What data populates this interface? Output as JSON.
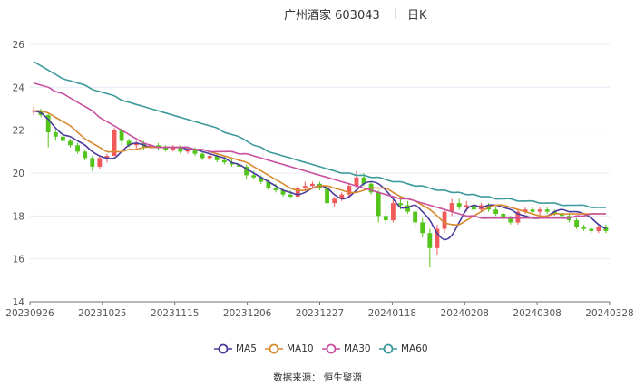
{
  "header": {
    "title": "广州酒家 603043",
    "period": "日K"
  },
  "source_label": "数据来源：  恒生聚源",
  "colors": {
    "up": "#f05a5a",
    "down": "#52c41a",
    "ma5": "#4b3c9c",
    "ma10": "#d8892f",
    "ma30": "#c94f9f",
    "ma60": "#3c9a9a",
    "grid": "#e8ecf4"
  },
  "chart_data": {
    "type": "candlestick",
    "title": "广州酒家 603043",
    "period": "日K",
    "ylim": [
      14,
      26
    ],
    "y_ticks": [
      14,
      16,
      18,
      20,
      22,
      24,
      26
    ],
    "x_tick_labels": [
      "20230926",
      "20231025",
      "20231115",
      "20231206",
      "20231227",
      "20240118",
      "20240208",
      "20240308",
      "20240328"
    ],
    "grid": true,
    "legend_position": "bottom",
    "legend": [
      "MA5",
      "MA10",
      "MA30",
      "MA60"
    ],
    "x_range": [
      "20230926",
      "20240328"
    ],
    "ma_series": [
      {
        "name": "MA5",
        "values": [
          22.9,
          22.8,
          22.5,
          22.1,
          21.8,
          21.7,
          21.5,
          21.3,
          21.0,
          20.8,
          20.7,
          20.7,
          21.0,
          21.3,
          21.4,
          21.3,
          21.2,
          21.2,
          21.2,
          21.2,
          21.2,
          21.1,
          21.1,
          21.0,
          20.9,
          20.8,
          20.7,
          20.5,
          20.4,
          20.2,
          20.0,
          19.8,
          19.6,
          19.4,
          19.2,
          19.1,
          19.0,
          19.1,
          19.3,
          19.4,
          19.3,
          19.0,
          18.8,
          18.9,
          19.2,
          19.5,
          19.6,
          19.5,
          19.2,
          18.8,
          18.4,
          18.4,
          18.5,
          18.2,
          17.8,
          17.2,
          16.9,
          17.1,
          17.7,
          18.3,
          18.5,
          18.4,
          18.5,
          18.5,
          18.4,
          18.3,
          18.1,
          18.0,
          17.9,
          17.9,
          18.0,
          18.2,
          18.3,
          18.2,
          18.2,
          18.1,
          17.9,
          17.6,
          17.4
        ]
      },
      {
        "name": "MA10",
        "values": [
          22.9,
          22.9,
          22.8,
          22.6,
          22.4,
          22.2,
          21.9,
          21.6,
          21.4,
          21.2,
          21.0,
          21.0,
          21.0,
          21.1,
          21.1,
          21.2,
          21.2,
          21.2,
          21.2,
          21.2,
          21.2,
          21.2,
          21.1,
          21.1,
          21.0,
          20.9,
          20.8,
          20.7,
          20.6,
          20.5,
          20.3,
          20.1,
          19.9,
          19.7,
          19.5,
          19.3,
          19.2,
          19.2,
          19.3,
          19.4,
          19.4,
          19.3,
          19.2,
          19.1,
          19.1,
          19.2,
          19.3,
          19.3,
          19.3,
          19.1,
          18.9,
          18.8,
          18.7,
          18.5,
          18.3,
          18.0,
          17.7,
          17.6,
          17.6,
          17.8,
          18.0,
          18.2,
          18.4,
          18.5,
          18.5,
          18.4,
          18.3,
          18.2,
          18.1,
          18.0,
          18.0,
          18.1,
          18.1,
          18.1,
          18.1,
          18.1,
          18.1,
          18.1,
          18.1
        ]
      },
      {
        "name": "MA30",
        "values": [
          24.2,
          24.1,
          24.0,
          23.8,
          23.7,
          23.5,
          23.3,
          23.1,
          22.9,
          22.6,
          22.4,
          22.2,
          22.0,
          21.8,
          21.6,
          21.4,
          21.3,
          21.2,
          21.2,
          21.2,
          21.2,
          21.2,
          21.1,
          21.1,
          21.0,
          21.0,
          21.0,
          21.0,
          20.9,
          20.9,
          20.8,
          20.7,
          20.6,
          20.5,
          20.4,
          20.3,
          20.2,
          20.1,
          20.0,
          19.9,
          19.8,
          19.7,
          19.6,
          19.5,
          19.4,
          19.3,
          19.2,
          19.1,
          19.0,
          18.9,
          18.8,
          18.8,
          18.7,
          18.6,
          18.5,
          18.4,
          18.3,
          18.2,
          18.1,
          18.0,
          18.0,
          17.9,
          17.9,
          17.9,
          17.9,
          17.9,
          17.9,
          17.9,
          17.9,
          17.9,
          17.9,
          17.9,
          17.9,
          17.9,
          18.0,
          18.0,
          18.1,
          18.1,
          18.1
        ]
      },
      {
        "name": "MA60",
        "values": [
          25.2,
          25.0,
          24.8,
          24.6,
          24.4,
          24.3,
          24.2,
          24.1,
          23.9,
          23.8,
          23.7,
          23.6,
          23.4,
          23.3,
          23.2,
          23.1,
          23.0,
          22.9,
          22.8,
          22.7,
          22.6,
          22.5,
          22.4,
          22.3,
          22.2,
          22.1,
          21.9,
          21.8,
          21.7,
          21.5,
          21.3,
          21.2,
          21.0,
          20.9,
          20.8,
          20.7,
          20.6,
          20.5,
          20.4,
          20.3,
          20.2,
          20.1,
          20.0,
          20.0,
          19.9,
          19.9,
          19.8,
          19.8,
          19.7,
          19.6,
          19.6,
          19.5,
          19.4,
          19.4,
          19.3,
          19.2,
          19.2,
          19.1,
          19.1,
          19.0,
          19.0,
          18.9,
          18.9,
          18.8,
          18.8,
          18.8,
          18.7,
          18.7,
          18.7,
          18.6,
          18.6,
          18.6,
          18.5,
          18.5,
          18.5,
          18.5,
          18.4,
          18.4,
          18.4
        ]
      }
    ],
    "candles": [
      [
        22.9,
        23.1,
        22.7,
        22.9
      ],
      [
        22.9,
        23.0,
        22.6,
        22.7
      ],
      [
        22.7,
        22.8,
        21.2,
        21.9
      ],
      [
        21.9,
        22.0,
        21.5,
        21.7
      ],
      [
        21.7,
        21.8,
        21.4,
        21.5
      ],
      [
        21.5,
        21.6,
        21.2,
        21.3
      ],
      [
        21.3,
        21.4,
        20.9,
        21.0
      ],
      [
        21.0,
        21.1,
        20.6,
        20.7
      ],
      [
        20.7,
        20.8,
        20.1,
        20.3
      ],
      [
        20.3,
        20.8,
        20.2,
        20.7
      ],
      [
        20.7,
        20.9,
        20.5,
        20.8
      ],
      [
        20.8,
        22.1,
        20.8,
        22.0
      ],
      [
        22.0,
        22.1,
        21.3,
        21.5
      ],
      [
        21.5,
        21.6,
        21.2,
        21.3
      ],
      [
        21.3,
        21.5,
        21.1,
        21.4
      ],
      [
        21.4,
        21.5,
        21.1,
        21.2
      ],
      [
        21.2,
        21.4,
        21.0,
        21.3
      ],
      [
        21.3,
        21.4,
        21.1,
        21.2
      ],
      [
        21.2,
        21.3,
        21.0,
        21.1
      ],
      [
        21.1,
        21.3,
        21.0,
        21.2
      ],
      [
        21.2,
        21.3,
        20.9,
        21.0
      ],
      [
        21.0,
        21.2,
        20.9,
        21.1
      ],
      [
        21.1,
        21.2,
        20.8,
        20.9
      ],
      [
        20.9,
        21.0,
        20.6,
        20.7
      ],
      [
        20.7,
        20.9,
        20.6,
        20.8
      ],
      [
        20.8,
        20.9,
        20.5,
        20.6
      ],
      [
        20.6,
        20.8,
        20.4,
        20.5
      ],
      [
        20.5,
        20.7,
        20.3,
        20.4
      ],
      [
        20.4,
        20.6,
        20.2,
        20.3
      ],
      [
        20.3,
        20.4,
        19.7,
        19.9
      ],
      [
        19.9,
        20.1,
        19.7,
        19.8
      ],
      [
        19.8,
        19.9,
        19.5,
        19.6
      ],
      [
        19.6,
        19.7,
        19.2,
        19.3
      ],
      [
        19.3,
        19.5,
        19.1,
        19.2
      ],
      [
        19.2,
        19.3,
        18.9,
        19.0
      ],
      [
        19.0,
        19.2,
        18.8,
        18.9
      ],
      [
        18.9,
        19.4,
        18.8,
        19.3
      ],
      [
        19.3,
        19.6,
        19.2,
        19.4
      ],
      [
        19.4,
        19.6,
        19.3,
        19.5
      ],
      [
        19.5,
        19.6,
        19.2,
        19.3
      ],
      [
        19.3,
        19.4,
        18.4,
        18.6
      ],
      [
        18.6,
        18.9,
        18.4,
        18.8
      ],
      [
        18.8,
        19.1,
        18.7,
        19.0
      ],
      [
        19.0,
        19.5,
        18.9,
        19.4
      ],
      [
        19.4,
        20.1,
        19.3,
        19.8
      ],
      [
        19.8,
        20.0,
        19.4,
        19.5
      ],
      [
        19.5,
        19.6,
        19.0,
        19.1
      ],
      [
        19.1,
        19.2,
        17.7,
        18.0
      ],
      [
        18.0,
        18.2,
        17.6,
        17.8
      ],
      [
        17.8,
        18.8,
        17.7,
        18.6
      ],
      [
        18.6,
        18.9,
        18.3,
        18.5
      ],
      [
        18.5,
        18.7,
        18.1,
        18.2
      ],
      [
        18.2,
        18.3,
        17.5,
        17.7
      ],
      [
        17.7,
        17.9,
        17.0,
        17.2
      ],
      [
        17.2,
        17.4,
        15.6,
        16.5
      ],
      [
        16.5,
        17.6,
        16.2,
        17.4
      ],
      [
        17.4,
        18.3,
        17.2,
        18.2
      ],
      [
        18.2,
        18.8,
        18.0,
        18.6
      ],
      [
        18.6,
        18.8,
        18.3,
        18.4
      ],
      [
        18.4,
        18.7,
        18.2,
        18.5
      ],
      [
        18.5,
        18.6,
        18.2,
        18.3
      ],
      [
        18.3,
        18.6,
        18.2,
        18.5
      ],
      [
        18.5,
        18.6,
        18.2,
        18.3
      ],
      [
        18.3,
        18.4,
        18.0,
        18.1
      ],
      [
        18.1,
        18.2,
        17.8,
        17.9
      ],
      [
        17.9,
        18.0,
        17.6,
        17.7
      ],
      [
        17.7,
        18.3,
        17.6,
        18.2
      ],
      [
        18.2,
        18.4,
        18.1,
        18.3
      ],
      [
        18.3,
        18.4,
        18.1,
        18.2
      ],
      [
        18.2,
        18.4,
        18.0,
        18.3
      ],
      [
        18.3,
        18.4,
        18.1,
        18.2
      ],
      [
        18.2,
        18.3,
        18.0,
        18.1
      ],
      [
        18.1,
        18.2,
        17.9,
        18.0
      ],
      [
        18.0,
        18.1,
        17.7,
        17.8
      ],
      [
        17.8,
        17.9,
        17.4,
        17.5
      ],
      [
        17.5,
        17.6,
        17.3,
        17.4
      ],
      [
        17.4,
        17.5,
        17.2,
        17.3
      ],
      [
        17.3,
        17.6,
        17.2,
        17.5
      ],
      [
        17.5,
        17.6,
        17.2,
        17.3
      ]
    ]
  }
}
